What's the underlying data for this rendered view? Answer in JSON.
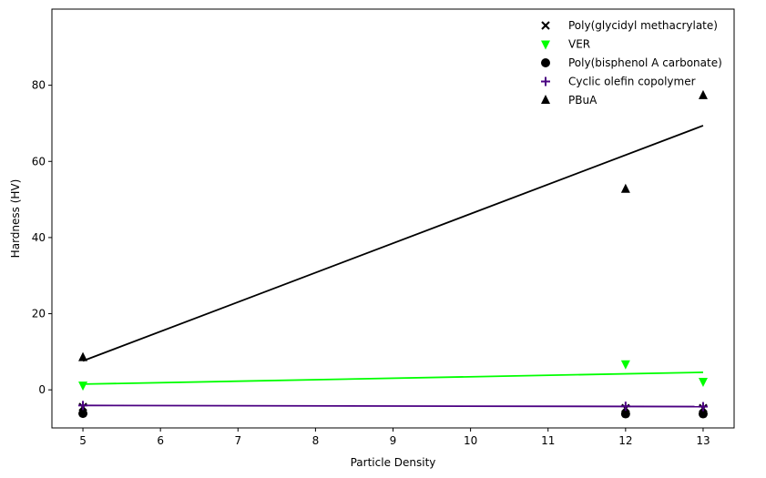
{
  "chart_data": {
    "type": "scatter",
    "xlabel": "Particle Density",
    "ylabel": "Hardness (HV)",
    "xlim": [
      4.6,
      13.4
    ],
    "ylim": [
      -10,
      100
    ],
    "xticks": [
      5,
      6,
      7,
      8,
      9,
      10,
      11,
      12,
      13
    ],
    "yticks": [
      0,
      20,
      40,
      60,
      80
    ],
    "grid": false,
    "legend_position": "top-right",
    "series": [
      {
        "name": "Poly(glycidyl methacrylate)",
        "marker": "x",
        "color": "#000000",
        "x": [
          5,
          12,
          13
        ],
        "y": [
          -4.5,
          -4.8,
          -4.8
        ],
        "fit": [
          -4.2,
          -4.5
        ]
      },
      {
        "name": "VER",
        "marker": "triangle-down",
        "color": "#00ff00",
        "x": [
          5,
          12,
          13
        ],
        "y": [
          1.2,
          6.8,
          2.2
        ],
        "fit": [
          1.5,
          4.6
        ]
      },
      {
        "name": "Poly(bisphenol A carbonate)",
        "marker": "circle",
        "color": "#000000",
        "x": [
          5,
          12,
          13
        ],
        "y": [
          -6.2,
          -6.3,
          -6.3
        ],
        "fit": [
          -4.1,
          -4.5
        ]
      },
      {
        "name": "Cyclic olefin copolymer",
        "marker": "plus",
        "color": "#4b0082",
        "x": [
          5,
          12,
          13
        ],
        "y": [
          -4.1,
          -4.3,
          -4.4
        ],
        "fit": [
          -4.1,
          -4.4
        ]
      },
      {
        "name": "PBuA",
        "marker": "triangle-up",
        "color": "#000000",
        "x": [
          5,
          12,
          13
        ],
        "y": [
          8.5,
          52.7,
          77.3
        ],
        "fit": [
          7.6,
          69.4
        ]
      }
    ]
  }
}
